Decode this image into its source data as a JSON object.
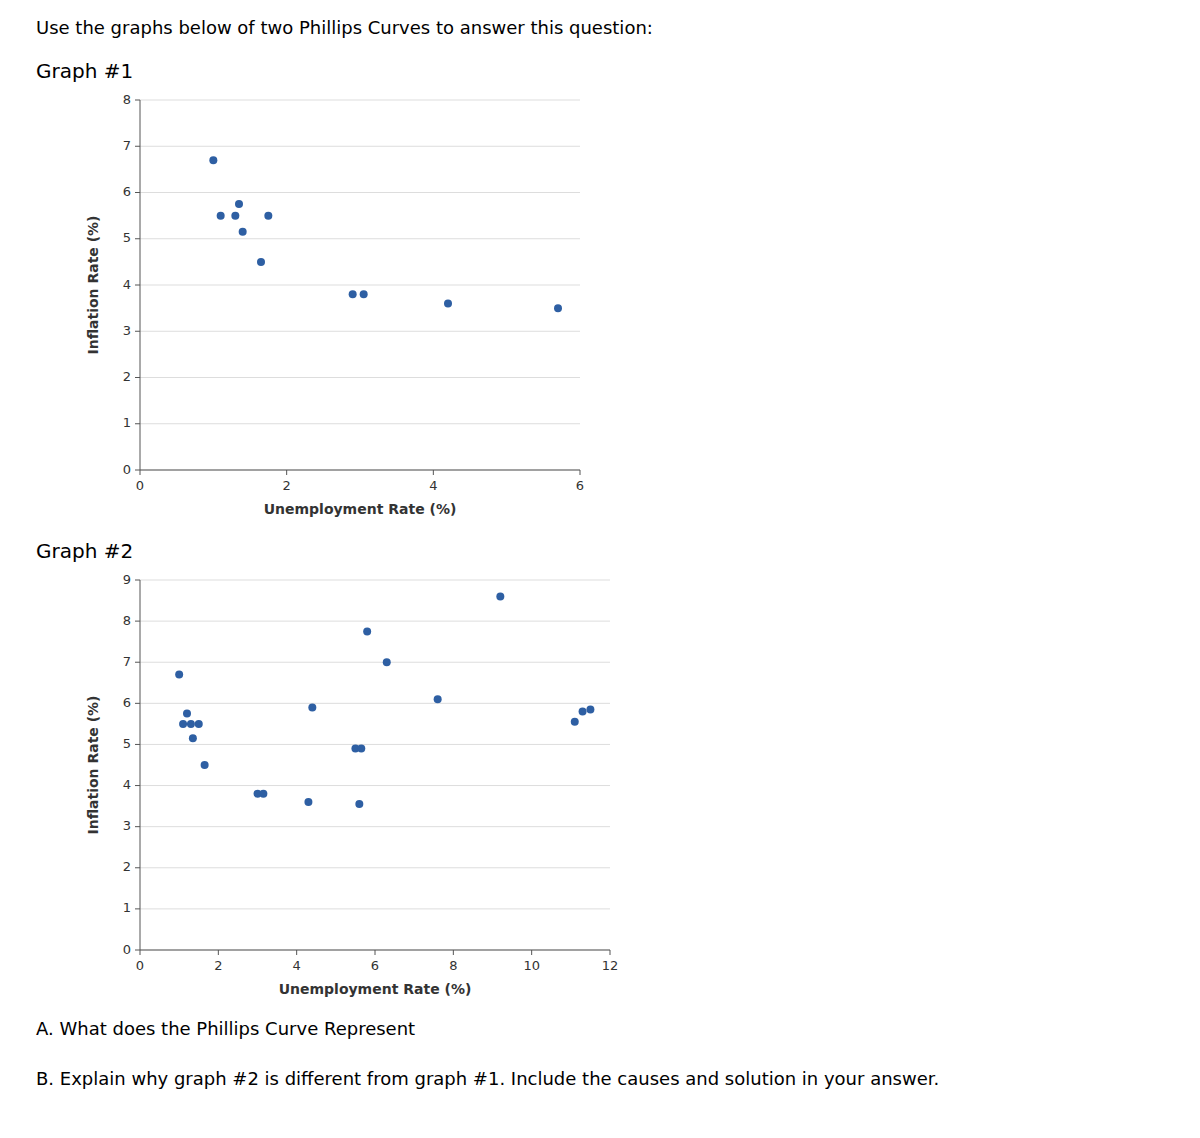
{
  "chart_data": [
    {
      "type": "scatter",
      "title": "Graph #1",
      "annotations": [
        "Use the graphs below of two Phillips Curves to answer this question:"
      ],
      "x_label": "Unemployment Rate (%)",
      "y_label": "Inflation Rate (%)",
      "x": [
        1.0,
        1.1,
        1.3,
        1.35,
        1.4,
        1.65,
        1.75,
        2.9,
        3.05,
        4.2,
        5.7
      ],
      "values": [
        6.7,
        5.5,
        5.5,
        5.75,
        5.15,
        4.5,
        5.5,
        3.8,
        3.8,
        3.6,
        3.5
      ],
      "color": "#2E5FA3",
      "xlim": [
        0,
        6
      ],
      "ylim": [
        0,
        8
      ],
      "xticks": [
        0,
        2,
        4,
        6
      ],
      "yticks": [
        0,
        1,
        2,
        3,
        4,
        5,
        6,
        7,
        8
      ],
      "grid": "y"
    },
    {
      "type": "scatter",
      "title": "Graph #2",
      "annotations": [
        "A. What does the Phillips Curve Represent",
        "B. Explain why graph #2 is different from graph #1.  Include the causes and solution in your answer."
      ],
      "x_label": "Unemployment Rate (%)",
      "y_label": "Inflation Rate (%)",
      "x": [
        1.0,
        1.1,
        1.2,
        1.3,
        1.35,
        1.5,
        1.65,
        3.0,
        3.15,
        4.3,
        4.4,
        5.5,
        5.6,
        5.65,
        6.3,
        5.8,
        7.6,
        9.2,
        11.1,
        11.3,
        11.5
      ],
      "values": [
        6.7,
        5.5,
        5.75,
        5.5,
        5.15,
        5.5,
        4.5,
        3.8,
        3.8,
        3.6,
        5.9,
        4.9,
        3.55,
        4.9,
        7.0,
        7.75,
        6.1,
        8.6,
        5.55,
        5.8,
        5.85
      ],
      "color": "#2E5FA3",
      "xlim": [
        0,
        12
      ],
      "ylim": [
        0,
        9
      ],
      "xticks": [
        0,
        2,
        4,
        6,
        8,
        10,
        12
      ],
      "yticks": [
        0,
        1,
        2,
        3,
        4,
        5,
        6,
        7,
        8,
        9
      ],
      "grid": "y"
    }
  ]
}
